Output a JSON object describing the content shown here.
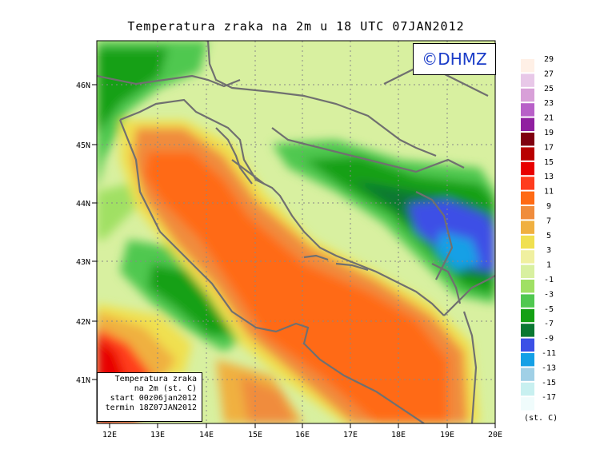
{
  "title": "Temperatura zraka na 2m u 18 UTC 07JAN2012",
  "logo_text": "©DHMZ",
  "info_box": {
    "line1": "Temperatura zraka",
    "line2": "na 2m (st. C)",
    "line3": "start 00z06jan2012",
    "line4": "termin 18Z07JAN2012"
  },
  "lat_ticks": [
    "46N",
    "45N",
    "44N",
    "43N",
    "42N",
    "41N"
  ],
  "lon_ticks": [
    "12E",
    "13E",
    "14E",
    "15E",
    "16E",
    "17E",
    "18E",
    "19E",
    "20E"
  ],
  "legend": {
    "unit": "(st. C)",
    "entries": [
      {
        "label": "29",
        "color": "#fff0e6"
      },
      {
        "label": "27",
        "color": "#e8c8e8"
      },
      {
        "label": "25",
        "color": "#d8a0d8"
      },
      {
        "label": "23",
        "color": "#b860c8"
      },
      {
        "label": "21",
        "color": "#9020a0"
      },
      {
        "label": "19",
        "color": "#800010"
      },
      {
        "label": "17",
        "color": "#b80000"
      },
      {
        "label": "15",
        "color": "#e80000"
      },
      {
        "label": "13",
        "color": "#ff3c1e"
      },
      {
        "label": "11",
        "color": "#ff6a14"
      },
      {
        "label": "9",
        "color": "#f08c3c"
      },
      {
        "label": "7",
        "color": "#f0b040"
      },
      {
        "label": "5",
        "color": "#f0e050"
      },
      {
        "label": "3",
        "color": "#f0f0a0"
      },
      {
        "label": "1",
        "color": "#d8f0a0"
      },
      {
        "label": "-1",
        "color": "#a0e064"
      },
      {
        "label": "-3",
        "color": "#50c850"
      },
      {
        "label": "-5",
        "color": "#14a014"
      },
      {
        "label": "-7",
        "color": "#0a7832"
      },
      {
        "label": "-9",
        "color": "#3c50e6"
      },
      {
        "label": "-11",
        "color": "#14a0e6"
      },
      {
        "label": "-13",
        "color": "#a0d0e6"
      },
      {
        "label": "-15",
        "color": "#c8f0f0"
      },
      {
        "label": "-17",
        "color": "#f0fcfc"
      }
    ]
  }
}
